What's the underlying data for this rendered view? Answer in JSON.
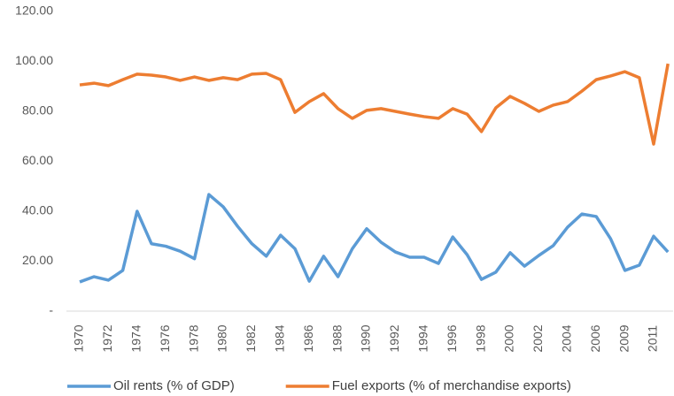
{
  "chart_data": {
    "type": "line",
    "categories": [
      "1970",
      null,
      "1972",
      null,
      "1974",
      null,
      "1976",
      null,
      "1978",
      null,
      "1980",
      null,
      "1982",
      null,
      "1984",
      null,
      "1986",
      null,
      "1988",
      null,
      "1990",
      null,
      "1992",
      null,
      "1994",
      null,
      "1996",
      null,
      "1998",
      null,
      "2000",
      null,
      "2002",
      null,
      "2004",
      null,
      "2006",
      null,
      "2009",
      null,
      "2011",
      null
    ],
    "series": [
      {
        "name": "Oil rents (% of GDP)",
        "color": "#5b9bd5",
        "values": [
          11.7,
          13.8,
          12.4,
          16.3,
          40,
          27,
          26,
          24,
          21,
          46.7,
          41.8,
          34,
          27,
          22,
          30.4,
          25,
          12,
          22,
          13.8,
          25,
          33,
          27.6,
          23.7,
          21.6,
          21.6,
          19.1,
          29.7,
          22.6,
          12.7,
          15.6,
          23.4,
          18,
          22.3,
          26.2,
          33.6,
          38.9,
          37.9,
          29,
          16.3,
          18.4,
          30,
          23.7
        ]
      },
      {
        "name": "Fuel exports (% of merchandise exports)",
        "color": "#ed7d31",
        "values": [
          90.6,
          91.3,
          90.3,
          92.7,
          94.9,
          94.5,
          93.8,
          92.4,
          93.8,
          92.4,
          93.5,
          92.7,
          94.9,
          95.2,
          92.7,
          79.6,
          83.9,
          87.1,
          81.1,
          77.2,
          80.4,
          81.1,
          80,
          78.9,
          77.9,
          77.2,
          81.1,
          78.9,
          71.9,
          81.4,
          86,
          83.2,
          80,
          82.5,
          83.9,
          88.1,
          92.7,
          94.2,
          95.9,
          93.5,
          66.9,
          99.1
        ]
      }
    ],
    "ylim": [
      0,
      120
    ],
    "yticks": [
      {
        "value": 0,
        "label": "-"
      },
      {
        "value": 20,
        "label": "20.00"
      },
      {
        "value": 40,
        "label": "40.00"
      },
      {
        "value": 60,
        "label": "60.00"
      },
      {
        "value": 80,
        "label": "80.00"
      },
      {
        "value": 100,
        "label": "100.00"
      },
      {
        "value": 120,
        "label": "120.00"
      }
    ],
    "legend": "bottom"
  }
}
